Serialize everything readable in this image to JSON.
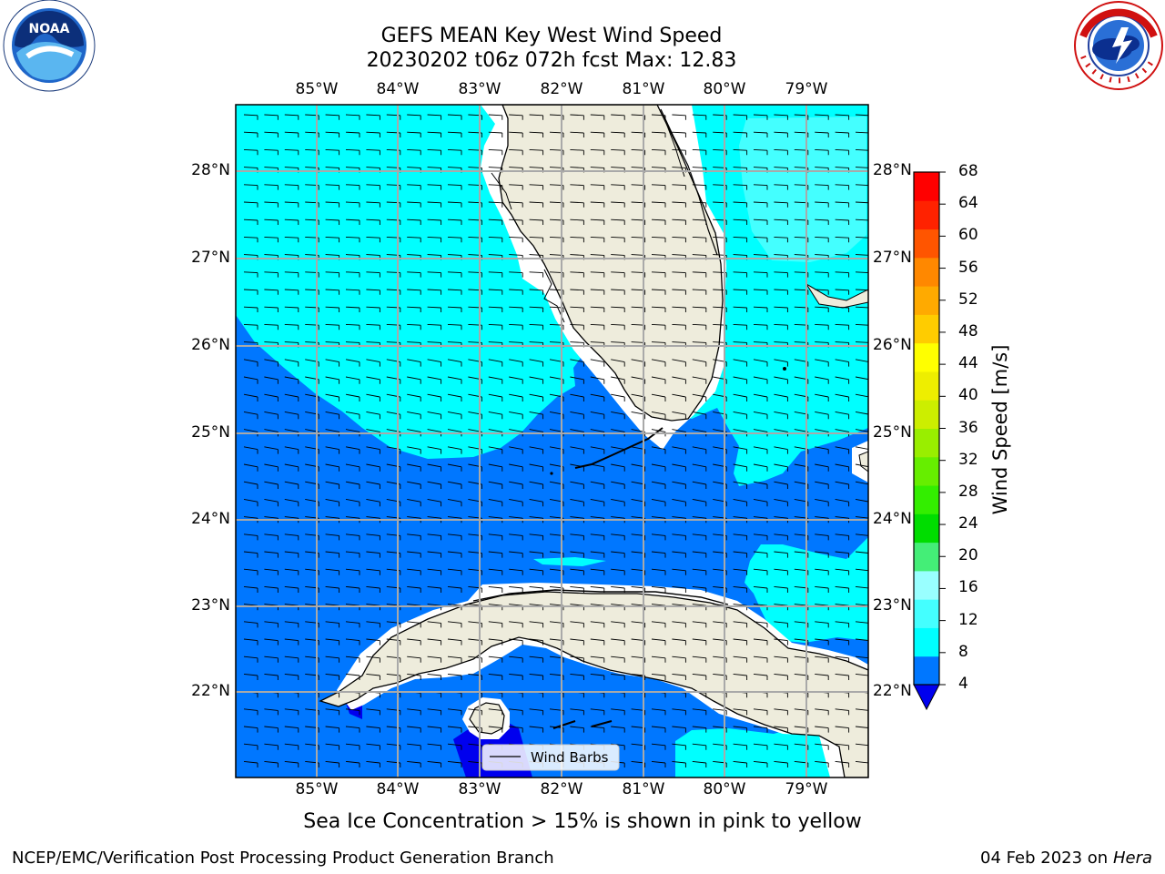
{
  "header": {
    "title_line1": "GEFS MEAN Key West Wind Speed",
    "title_line2": "20230202 t06z 072h fcst   Max: 12.83",
    "left_logo_text": "NOAA",
    "left_logo_ring": "NATIONAL OCEANIC AND ATMOSPHERIC ADMINISTRATION · U.S. DEPARTMENT OF COMMERCE",
    "right_logo_ring": "NATIONAL WEATHER SERVICE"
  },
  "map": {
    "lon_labels": [
      "85°W",
      "84°W",
      "83°W",
      "82°W",
      "81°W",
      "80°W",
      "79°W"
    ],
    "lat_labels": [
      "28°N",
      "27°N",
      "26°N",
      "25°N",
      "24°N",
      "23°N",
      "22°N"
    ],
    "legend_label": "Wind Barbs",
    "colors": {
      "land": "#eeecdc",
      "deep_blue": "#0000ee",
      "blue": "#0077ff",
      "cyan": "#00ffff",
      "light_cyan": "#44ffff",
      "gridline": "#a9a9a9"
    }
  },
  "colorbar": {
    "label": "Wind Speed [m/s]",
    "ticks": [
      "68",
      "64",
      "60",
      "56",
      "52",
      "48",
      "44",
      "40",
      "36",
      "32",
      "28",
      "24",
      "20",
      "16",
      "12",
      "8",
      "4"
    ],
    "colors": [
      "#0077ff",
      "#00ffff",
      "#44ffff",
      "#99ffff",
      "#44ee77",
      "#00dd00",
      "#33ee00",
      "#66ee00",
      "#99ee00",
      "#ccee00",
      "#eeee00",
      "#ffff00",
      "#ffcc00",
      "#ffaa00",
      "#ff8800",
      "#ff5500",
      "#ff2200",
      "#ff0000"
    ],
    "extend_color": "#0000ee"
  },
  "caption": "Sea Ice Concentration > 15% is shown in pink to yellow",
  "footer": {
    "left": "NCEP/EMC/Verification Post Processing Product Generation Branch",
    "right_date": "04 Feb 2023 on",
    "right_host": "Hera"
  }
}
